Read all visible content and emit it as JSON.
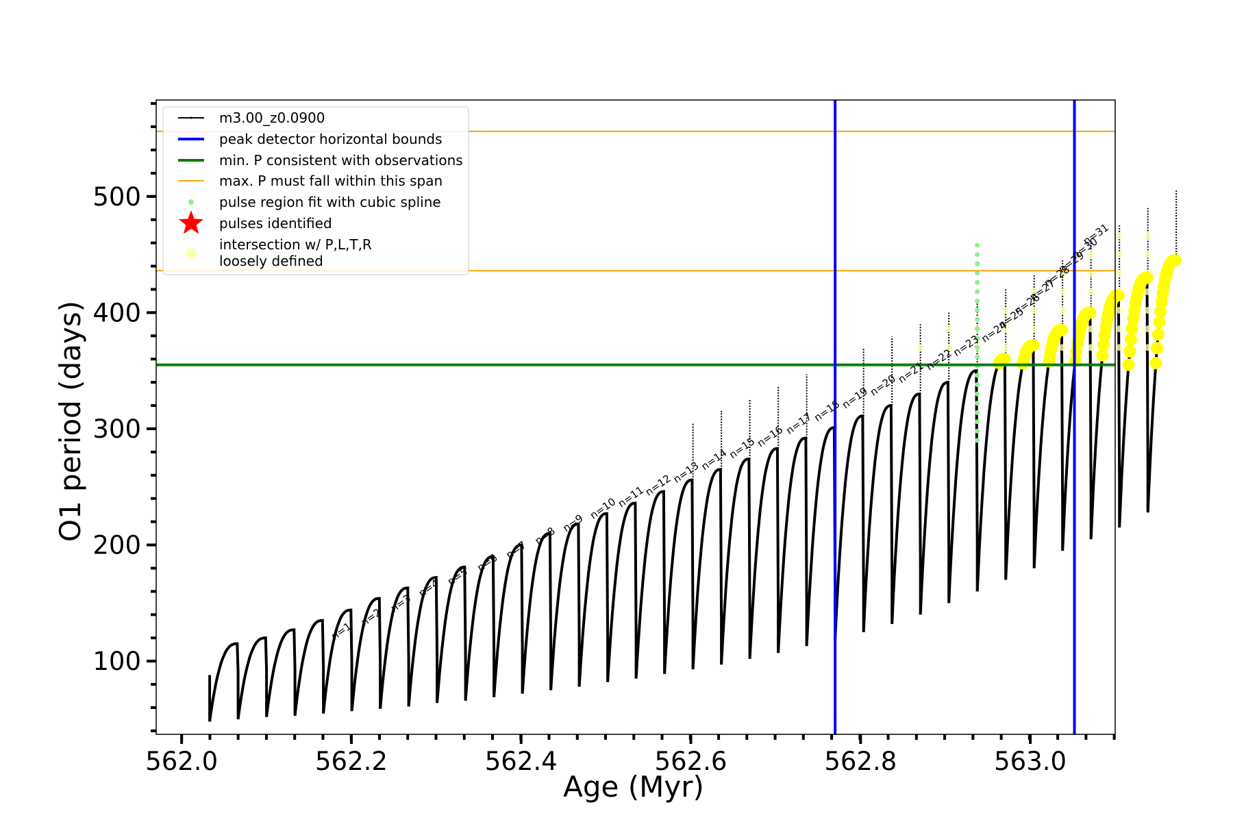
{
  "chart_data": {
    "type": "line",
    "xlabel": "Age (Myr)",
    "ylabel": "O1 period (days)",
    "xlim": [
      561.97,
      563.1
    ],
    "ylim": [
      37,
      583
    ],
    "x_ticks": [
      562.0,
      562.2,
      562.4,
      562.6,
      562.8,
      563.0
    ],
    "x_tick_labels": [
      "562.0",
      "562.2",
      "562.4",
      "562.6",
      "562.8",
      "563.0"
    ],
    "y_ticks": [
      100,
      200,
      300,
      400,
      500
    ],
    "y_tick_labels": [
      "100",
      "200",
      "300",
      "400",
      "500"
    ],
    "x_minor_step": 0.0333,
    "y_minor_step": 20,
    "colors": {
      "series": "#000000",
      "bounds": "#0000ff",
      "min_p": "#008000",
      "max_p": "#ffa500",
      "spline": "#90ee90",
      "pulses": "#ff0000",
      "intersection": "#ffff00",
      "loose": "#ffffb0"
    },
    "series": [
      {
        "name": "m3.00_z0.0900",
        "pulse_start_age": 562.033,
        "pulse_spacing_myr": 0.0335,
        "pulse_count": 34,
        "pulse_min_periods": [
          48,
          50,
          52,
          53,
          55,
          57,
          59,
          61,
          64,
          66,
          69,
          72,
          75,
          78,
          82,
          85,
          89,
          93,
          97,
          102,
          107,
          113,
          119,
          125,
          132,
          140,
          150,
          160,
          170,
          180,
          195,
          205,
          215,
          228
        ],
        "pulse_max_periods": [
          115,
          120,
          127,
          135,
          144,
          154,
          163,
          172,
          181,
          190,
          200,
          210,
          218,
          227,
          236,
          246,
          256,
          265,
          274,
          283,
          292,
          301,
          311,
          320,
          330,
          340,
          350,
          360,
          372,
          385,
          400,
          415,
          430,
          445
        ]
      }
    ],
    "peak_detector_bounds": [
      562.77,
      563.052
    ],
    "min_period": 355,
    "max_period_span": [
      436,
      556
    ],
    "pulse_labels": [
      {
        "text": "n=1",
        "x": 562.18,
        "y": 118
      },
      {
        "text": "n=2",
        "x": 562.215,
        "y": 130
      },
      {
        "text": "n=3",
        "x": 562.25,
        "y": 142
      },
      {
        "text": "n=4",
        "x": 562.283,
        "y": 155
      },
      {
        "text": "n=5",
        "x": 562.317,
        "y": 165
      },
      {
        "text": "n=6",
        "x": 562.352,
        "y": 177
      },
      {
        "text": "n=7",
        "x": 562.386,
        "y": 188
      },
      {
        "text": "n=8",
        "x": 562.42,
        "y": 200
      },
      {
        "text": "n=9",
        "x": 562.453,
        "y": 211
      },
      {
        "text": "n=10",
        "x": 562.485,
        "y": 222
      },
      {
        "text": "n=11",
        "x": 562.518,
        "y": 232
      },
      {
        "text": "n=12",
        "x": 562.55,
        "y": 242
      },
      {
        "text": "n=13",
        "x": 562.583,
        "y": 253
      },
      {
        "text": "n=14",
        "x": 562.616,
        "y": 264
      },
      {
        "text": "n=15",
        "x": 562.649,
        "y": 274
      },
      {
        "text": "n=16",
        "x": 562.682,
        "y": 284
      },
      {
        "text": "n=17",
        "x": 562.716,
        "y": 295
      },
      {
        "text": "n=18",
        "x": 562.749,
        "y": 306
      },
      {
        "text": "n=19",
        "x": 562.782,
        "y": 317
      },
      {
        "text": "n=20",
        "x": 562.815,
        "y": 328
      },
      {
        "text": "n=21",
        "x": 562.848,
        "y": 339
      },
      {
        "text": "n=22",
        "x": 562.881,
        "y": 350
      },
      {
        "text": "n=23",
        "x": 562.913,
        "y": 362
      },
      {
        "text": "n=24",
        "x": 562.946,
        "y": 374
      },
      {
        "text": "n=25",
        "x": 562.966,
        "y": 386
      },
      {
        "text": "n=26",
        "x": 562.985,
        "y": 398
      },
      {
        "text": "n=27",
        "x": 563.003,
        "y": 410
      },
      {
        "text": "n=28",
        "x": 563.02,
        "y": 422
      },
      {
        "text": "n=29",
        "x": 563.037,
        "y": 434
      },
      {
        "text": "n=30",
        "x": 563.053,
        "y": 446
      },
      {
        "text": "n=31",
        "x": 563.066,
        "y": 458
      }
    ],
    "legend": {
      "placement": "upper-left",
      "entries": [
        {
          "label": "m3.00_z0.0900",
          "marker": "line"
        },
        {
          "label": "peak detector horizontal bounds",
          "marker": "blue-line"
        },
        {
          "label": "min. P consistent with observations",
          "marker": "green-line"
        },
        {
          "label": "max. P must fall within this span",
          "marker": "orange-line"
        },
        {
          "label": "pulse region fit with cubic spline",
          "marker": "green-dot"
        },
        {
          "label": "pulses identified",
          "marker": "red-star"
        },
        {
          "label": "intersection w/ P,L,T,R",
          "label2": "loosely defined",
          "marker": "yellow-dot"
        }
      ]
    }
  }
}
